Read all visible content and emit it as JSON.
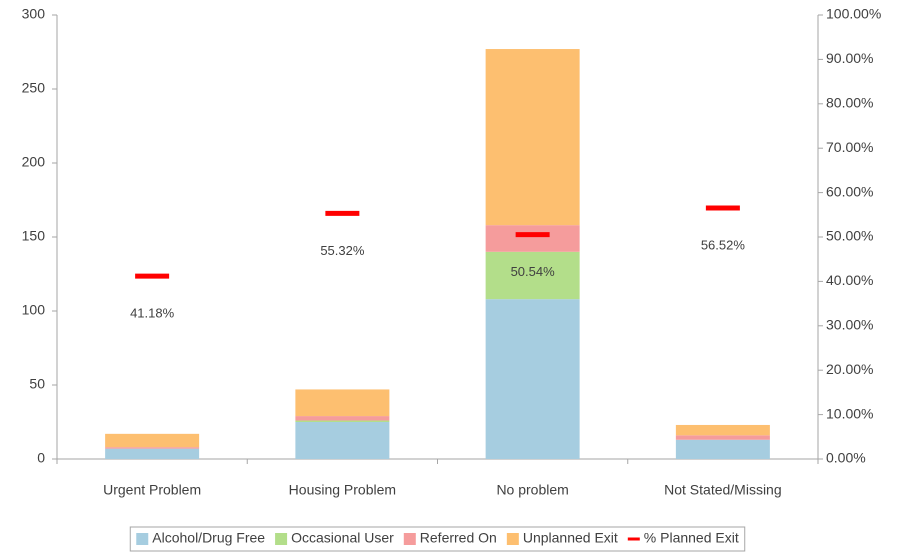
{
  "chart_data": {
    "type": "bar",
    "stacked": true,
    "categories": [
      "Urgent Problem",
      "Housing Problem",
      "No problem",
      "Not Stated/Missing"
    ],
    "series": [
      {
        "name": "Alcohol/Drug Free",
        "color": "#a6cde0",
        "values": [
          7,
          25,
          108,
          13
        ]
      },
      {
        "name": "Occasional User",
        "color": "#b3de8a",
        "values": [
          0,
          1,
          32,
          0
        ]
      },
      {
        "name": "Referred On",
        "color": "#f59c9c",
        "values": [
          1,
          3,
          18,
          3
        ]
      },
      {
        "name": "Unplanned Exit",
        "color": "#fdbf70",
        "values": [
          9,
          18,
          119,
          7
        ]
      },
      {
        "name": "% Planned Exit",
        "color": "#ff0000",
        "type": "line",
        "marker": "dash",
        "axis": "y2",
        "values": [
          41.18,
          55.32,
          50.54,
          56.52
        ],
        "value_labels": [
          "41.18%",
          "55.32%",
          "50.54%",
          "56.52%"
        ]
      }
    ],
    "ylim": [
      0,
      300
    ],
    "yticks": [
      0,
      50,
      100,
      150,
      200,
      250,
      300
    ],
    "y2lim": [
      0,
      100
    ],
    "y2ticks": [
      {
        "value": 0,
        "label": "0.00%"
      },
      {
        "value": 10,
        "label": "10.00%"
      },
      {
        "value": 20,
        "label": "20.00%"
      },
      {
        "value": 30,
        "label": "30.00%"
      },
      {
        "value": 40,
        "label": "40.00%"
      },
      {
        "value": 50,
        "label": "50.00%"
      },
      {
        "value": 60,
        "label": "60.00%"
      },
      {
        "value": 70,
        "label": "70.00%"
      },
      {
        "value": 80,
        "label": "80.00%"
      },
      {
        "value": 90,
        "label": "90.00%"
      },
      {
        "value": 100,
        "label": "100.00%"
      }
    ],
    "legend": "bottom"
  }
}
